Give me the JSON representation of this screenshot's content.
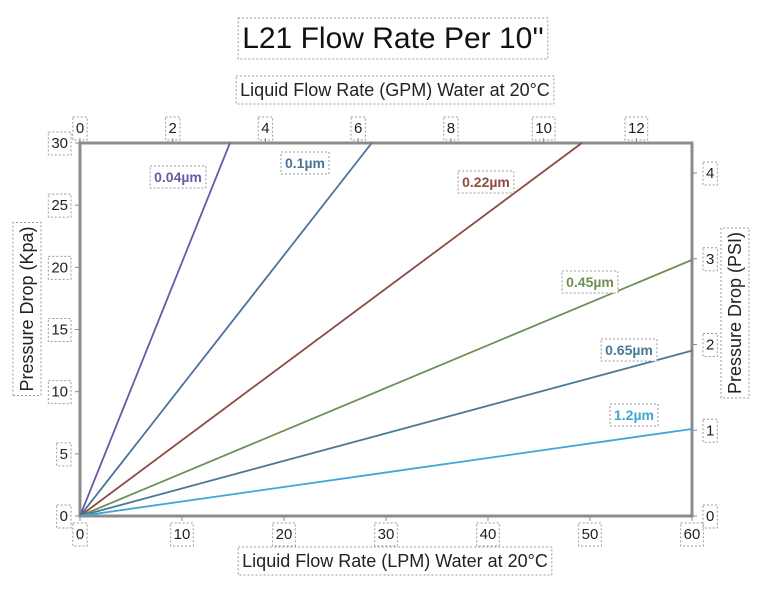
{
  "chart_data": {
    "type": "line",
    "title": "L21 Flow Rate Per 10''",
    "xlabel": "Liquid Flow Rate (LPM) Water at 20°C",
    "x2label": "Liquid Flow Rate (GPM) Water at 20°C",
    "ylabel": "Pressure Drop (Kpa)",
    "y2label": "Pressure Drop (PSI)",
    "xlim": [
      0,
      60
    ],
    "ylim": [
      0,
      30
    ],
    "x2lim": [
      0,
      13.2
    ],
    "y2lim": [
      0,
      4.35
    ],
    "x_ticks": [
      "0",
      "10",
      "20",
      "30",
      "40",
      "50",
      "60"
    ],
    "y_ticks": [
      "0",
      "5",
      "10",
      "15",
      "20",
      "25",
      "30"
    ],
    "x2_ticks": [
      "0",
      "2",
      "4",
      "6",
      "8",
      "10",
      "12"
    ],
    "y2_ticks": [
      "0",
      "1",
      "2",
      "3",
      "4"
    ],
    "grid": false,
    "series": [
      {
        "name": "0.04µm",
        "color": "#6a5aa5",
        "x": [
          0,
          14.7
        ],
        "y": [
          0,
          30
        ]
      },
      {
        "name": "0.1µm",
        "color": "#4f729a",
        "x": [
          0,
          28.6
        ],
        "y": [
          0,
          30
        ]
      },
      {
        "name": "0.22µm",
        "color": "#8e4a43",
        "x": [
          0,
          49.2
        ],
        "y": [
          0,
          30
        ]
      },
      {
        "name": "0.45µm",
        "color": "#6e9156",
        "x": [
          0,
          60
        ],
        "y": [
          0,
          20.6
        ]
      },
      {
        "name": "0.65µm",
        "color": "#4b7a96",
        "x": [
          0,
          60
        ],
        "y": [
          0,
          13.3
        ]
      },
      {
        "name": "1.2µm",
        "color": "#3fa6d6",
        "x": [
          0,
          60
        ],
        "y": [
          0,
          7.0
        ]
      }
    ]
  }
}
